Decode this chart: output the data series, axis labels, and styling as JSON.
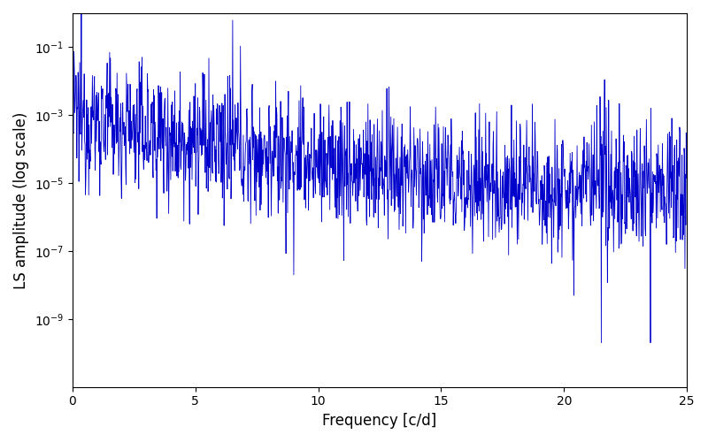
{
  "title": "",
  "xlabel": "Frequency [c/d]",
  "ylabel": "LS amplitude (log scale)",
  "xlim": [
    0,
    25
  ],
  "ylim": [
    1e-11,
    1.0
  ],
  "color": "#0000cc",
  "background_color": "#ffffff",
  "yscale": "log",
  "figsize": [
    8.0,
    5.0
  ],
  "dpi": 100,
  "seed": 12345,
  "n_points": 1500,
  "freq_max": 25.0,
  "yticks": [
    1e-09,
    1e-07,
    1e-05,
    0.001,
    0.1
  ]
}
